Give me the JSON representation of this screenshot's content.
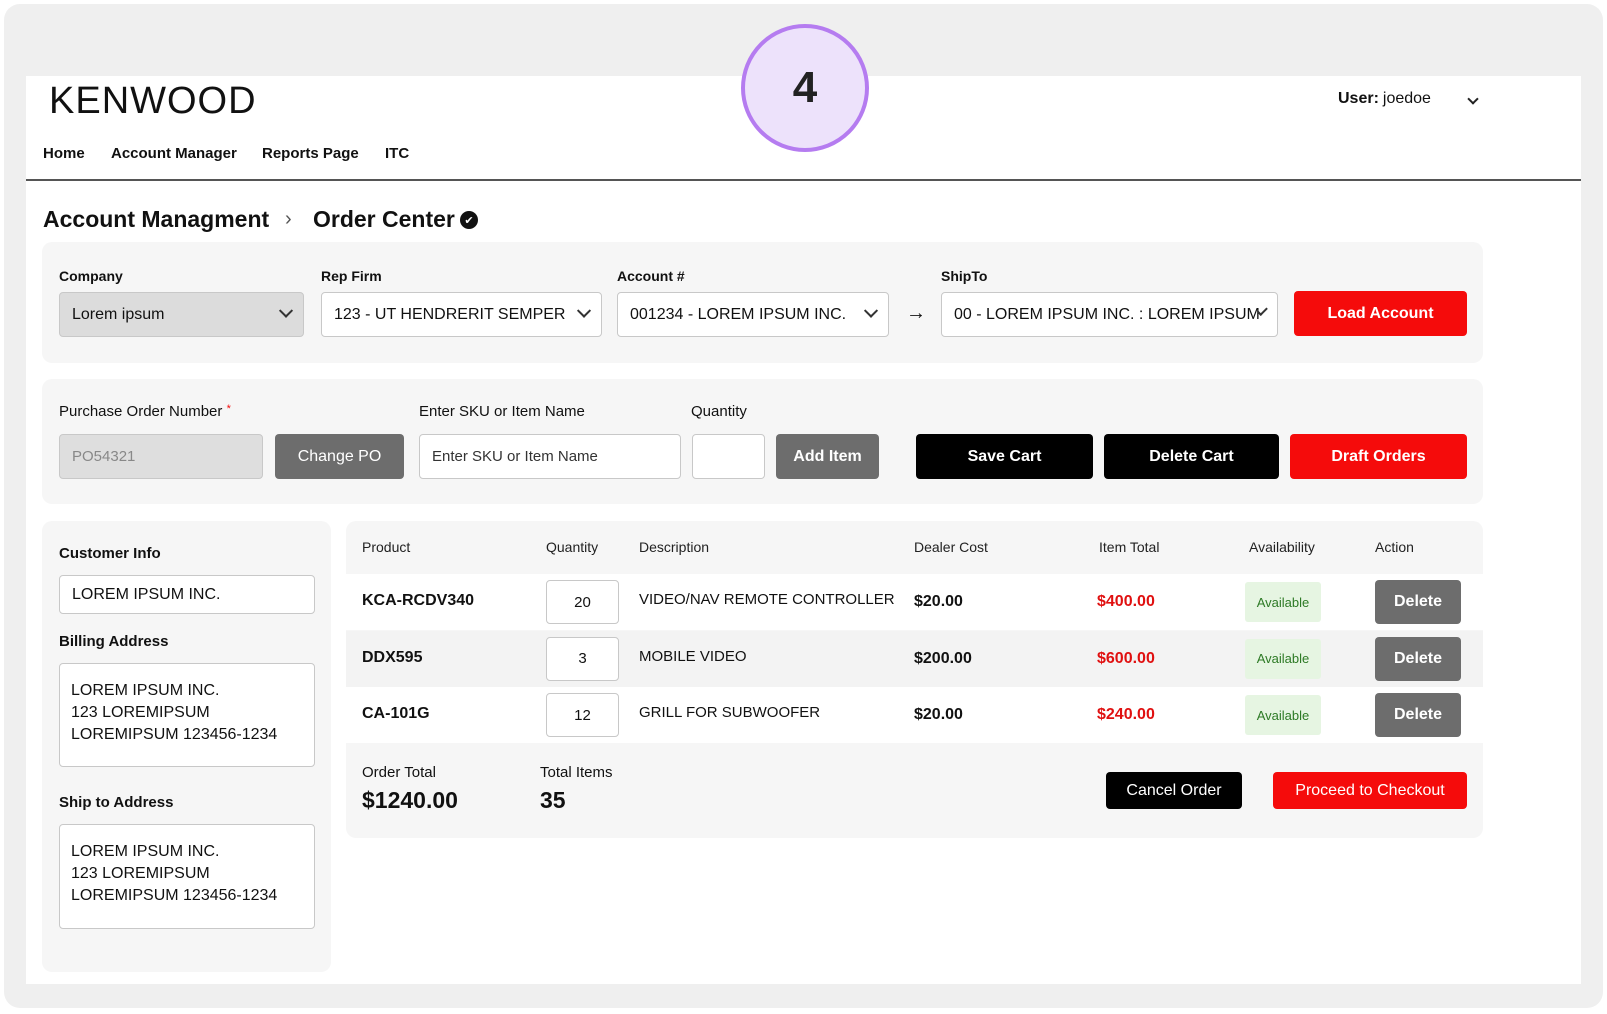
{
  "badge": "4",
  "header": {
    "logo": "KENWOOD",
    "user_label": "User:",
    "user_name": "joedoe"
  },
  "nav": [
    "Home",
    "Account Manager",
    "Reports Page",
    "ITC"
  ],
  "breadcrumb": [
    "Account Managment",
    "Order Center"
  ],
  "account_filters": {
    "fields": [
      {
        "label": "Company",
        "value": "Lorem ipsum"
      },
      {
        "label": "Rep Firm",
        "value": "123 - UT HENDRERIT SEMPER"
      },
      {
        "label": "Account #",
        "value": "001234 - LOREM IPSUM INC."
      },
      {
        "label": "ShipTo",
        "value": "00 - LOREM IPSUM INC. : LOREM IPSUM"
      }
    ],
    "load_button": "Load Account"
  },
  "order_entry": {
    "po_label": "Purchase Order Number",
    "required_mark": "*",
    "po_value": "PO54321",
    "change_po": "Change PO",
    "sku_label": "Enter SKU or Item Name",
    "sku_placeholder": "Enter SKU or Item Name",
    "quantity_label": "Quantity",
    "add_item": "Add Item",
    "save_cart": "Save Cart",
    "delete_cart": "Delete Cart",
    "draft_orders": "Draft Orders"
  },
  "customer": {
    "title": "Customer Info",
    "name": "LOREM IPSUM INC.",
    "billing_title": "Billing Address",
    "billing_lines": [
      "LOREM IPSUM INC.",
      "123 LOREMIPSUM",
      "LOREMIPSUM 123456-1234"
    ],
    "ship_title": "Ship to Address",
    "ship_lines": [
      "LOREM IPSUM INC.",
      "123 LOREMIPSUM",
      "LOREMIPSUM 123456-1234"
    ]
  },
  "table": {
    "headers": [
      "Product",
      "Quantity",
      "Description",
      "Dealer Cost",
      "Item Total",
      "Availability",
      "Action"
    ],
    "rows": [
      [
        "KCA-RCDV340",
        20,
        "VIDEO/NAV REMOTE CONTROLLER",
        "$20.00",
        "$400.00",
        "Available",
        "Delete"
      ],
      [
        "DDX595",
        3,
        "MOBILE VIDEO",
        "$200.00",
        "$600.00",
        "Available",
        "Delete"
      ],
      [
        "CA-101G",
        12,
        "GRILL FOR SUBWOOFER",
        "$20.00",
        "$240.00",
        "Available",
        "Delete"
      ]
    ]
  },
  "totals": {
    "order_total_label": "Order Total",
    "order_total": "$1240.00",
    "total_items_label": "Total Items",
    "total_items": 35,
    "cancel_order": "Cancel Order",
    "checkout": "Proceed to Checkout"
  }
}
